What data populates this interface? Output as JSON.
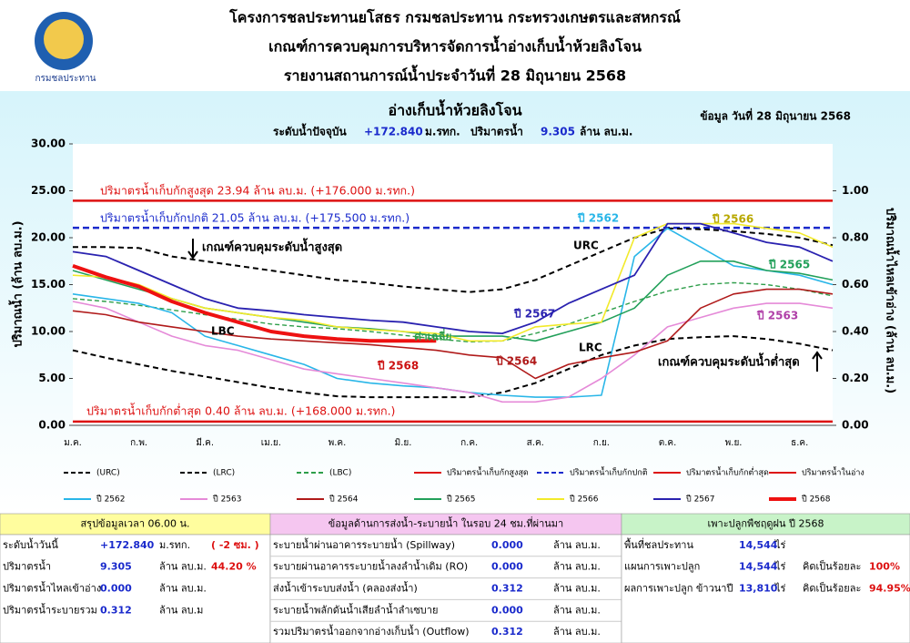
{
  "header": {
    "logo_text": "กรมชลประทาน",
    "titles": [
      "โครงการชลประทานยโสธร กรมชลประทาน กระทรวงเกษตรและสหกรณ์",
      "เกณฑ์การควบคุมการบริหารจัดการน้ำอ่างเก็บน้ำห้วยลิงโจน",
      "รายงานสถานการณ์น้ำประจำวันที่ 28 มิถุนายน 2568"
    ]
  },
  "chart_data": {
    "type": "line",
    "title": "อ่างเก็บน้ำห้วยลิงโจน",
    "subtitle_parts": [
      "ระดับน้ำปัจจุบัน",
      "+172.840",
      "ม.รทก.",
      "ปริมาตรน้ำ",
      "9.305",
      "ล้าน ลบ.ม."
    ],
    "date_note": "ข้อมูล วันที่ 28 มิถุนายน 2568",
    "y_label": "ปริมาณน้ำ (ล้าน ลบ.ม.)",
    "y2_label": "ปริมาณน้ำไหลเข้าอ่าง (ล้าน ลบ.ม.)",
    "categories": [
      "ม.ค.",
      null,
      "ก.พ.",
      null,
      "มี.ค.",
      null,
      "เม.ย.",
      null,
      "พ.ค.",
      null,
      "มิ.ย.",
      null,
      "ก.ค.",
      null,
      "ส.ค.",
      null,
      "ก.ย.",
      null,
      "ต.ค.",
      null,
      "พ.ย.",
      null,
      "ธ.ค.",
      null
    ],
    "ylim": [
      0,
      30
    ],
    "yticks": [
      {
        "value": 0,
        "label": "0.00"
      },
      {
        "value": 5,
        "label": "5.00"
      },
      {
        "value": 10,
        "label": "10.00"
      },
      {
        "value": 15,
        "label": "15.00"
      },
      {
        "value": 20,
        "label": "20.00"
      },
      {
        "value": 25,
        "label": "25.00"
      },
      {
        "value": 30,
        "label": "30.00"
      }
    ],
    "y2lim": [
      0,
      1.2
    ],
    "y2ticks": [
      {
        "value": 0,
        "label": "0.00"
      },
      {
        "value": 0.2,
        "label": "0.20"
      },
      {
        "value": 0.4,
        "label": "0.40"
      },
      {
        "value": 0.6,
        "label": "0.60"
      },
      {
        "value": 0.8,
        "label": "0.80"
      },
      {
        "value": 1,
        "label": "1.00"
      }
    ],
    "series": [
      {
        "name": "(URC)",
        "color": "#000000",
        "style": "dashed",
        "values": [
          19.0,
          19.0,
          18.9,
          18.0,
          17.5,
          17.0,
          16.5,
          16.0,
          15.5,
          15.2,
          14.8,
          14.5,
          14.2,
          14.5,
          15.5,
          17.0,
          18.5,
          20.0,
          21.0,
          20.9,
          20.7,
          20.4,
          20.0,
          19.2
        ]
      },
      {
        "name": "(LRC)",
        "color": "#000000",
        "style": "dashed",
        "values": [
          8.0,
          7.2,
          6.5,
          5.8,
          5.2,
          4.6,
          4.0,
          3.5,
          3.1,
          3.0,
          3.0,
          3.0,
          3.0,
          3.5,
          4.5,
          6.0,
          7.5,
          8.5,
          9.2,
          9.4,
          9.5,
          9.2,
          8.7,
          8.0
        ]
      },
      {
        "name": "(LBC)",
        "color": "#2e9e4a",
        "style": "dashed",
        "values": [
          13.5,
          13.2,
          12.8,
          12.3,
          11.8,
          11.3,
          10.8,
          10.5,
          10.3,
          10.0,
          9.6,
          9.2,
          8.9,
          9.0,
          9.8,
          10.8,
          12.0,
          13.2,
          14.3,
          15.0,
          15.2,
          15.0,
          14.5,
          13.8
        ]
      },
      {
        "name": "ปี 2562",
        "color": "#29b6e8",
        "style": "solid",
        "values": [
          14.0,
          13.5,
          13.0,
          12.0,
          9.5,
          8.5,
          7.5,
          6.5,
          5.0,
          4.5,
          4.2,
          4.0,
          3.5,
          3.2,
          3.0,
          3.0,
          3.2,
          18.0,
          21.0,
          19.0,
          17.0,
          16.5,
          16.0,
          15.0
        ]
      },
      {
        "name": "ปี 2563",
        "color": "#e58ad8",
        "style": "solid",
        "values": [
          13.2,
          12.5,
          11.0,
          9.5,
          8.5,
          8.0,
          7.0,
          6.0,
          5.5,
          5.0,
          4.5,
          4.0,
          3.5,
          2.5,
          2.5,
          3.0,
          5.0,
          7.5,
          10.5,
          11.5,
          12.5,
          13.0,
          13.0,
          12.5
        ]
      },
      {
        "name": "ปี 2564",
        "color": "#b01a1a",
        "style": "solid",
        "values": [
          12.2,
          11.8,
          11.0,
          10.5,
          10.0,
          9.5,
          9.2,
          9.0,
          8.8,
          8.6,
          8.3,
          8.0,
          7.5,
          7.2,
          5.0,
          6.5,
          7.2,
          7.8,
          9.0,
          12.5,
          14.0,
          14.5,
          14.5,
          14.0
        ]
      },
      {
        "name": "ปี 2565",
        "color": "#22a05a",
        "style": "solid",
        "values": [
          16.5,
          15.5,
          14.5,
          13.5,
          12.5,
          12.0,
          11.5,
          11.0,
          10.5,
          10.3,
          10.0,
          9.5,
          9.5,
          9.5,
          9.0,
          10.0,
          11.0,
          12.5,
          16.0,
          17.5,
          17.5,
          16.5,
          16.2,
          15.5
        ]
      },
      {
        "name": "ปี 2566",
        "color": "#f2ea2a",
        "style": "solid",
        "values": [
          16.0,
          15.8,
          15.0,
          13.5,
          12.5,
          12.0,
          11.5,
          11.2,
          10.5,
          10.2,
          10.0,
          9.8,
          9.0,
          9.0,
          10.5,
          10.8,
          11.0,
          20.0,
          21.5,
          21.5,
          21.5,
          21.0,
          20.5,
          19.0
        ]
      },
      {
        "name": "ปี 2567",
        "color": "#2a22b0",
        "style": "solid",
        "values": [
          18.5,
          18.0,
          16.5,
          15.0,
          13.5,
          12.5,
          12.2,
          11.8,
          11.5,
          11.2,
          11.0,
          10.5,
          10.0,
          9.8,
          11.0,
          13.0,
          14.5,
          16.0,
          21.5,
          21.5,
          20.5,
          19.5,
          19.0,
          17.5
        ]
      },
      {
        "name": "ปี 2568",
        "color": "#ee1111",
        "style": "solid",
        "values": [
          17.0,
          15.8,
          14.8,
          13.2,
          12.0,
          11.0,
          10.0,
          9.5,
          9.2,
          9.0,
          9.0,
          9.0,
          null,
          null,
          null,
          null,
          null,
          null,
          null,
          null,
          null,
          null,
          null,
          null
        ]
      }
    ],
    "reference_lines": [
      {
        "name": "ปริมาตรน้ำเก็บกักสูงสุด",
        "value": 23.94,
        "color": "#dd1111",
        "style": "solid",
        "label": "ปริมาตรน้ำเก็บกักสูงสุด  23.94  ล้าน ลบ.ม. (+176.000 ม.รทก.)"
      },
      {
        "name": "ปริมาตรน้ำเก็บกักปกติ",
        "value": 21.05,
        "color": "#1a2acc",
        "style": "dashed",
        "label": "ปริมาตรน้ำเก็บกักปกติ 21.05 ล้าน ลบ.ม. (+175.500 ม.รทก.)"
      },
      {
        "name": "ปริมาตรน้ำเก็บกักต่ำสุด",
        "value": 0.4,
        "color": "#dd1111",
        "style": "solid",
        "label": "ปริมาตรน้ำเก็บกักต่ำสุด 0.40 ล้าน ลบ.ม. (+168.000 ม.รทก.)"
      }
    ],
    "legend_only": [
      {
        "name": "ปริมาตรน้ำในอ่าง",
        "color": "#dd1111"
      }
    ],
    "annotations": [
      "เกณฑ์ควบคุมระดับน้ำสูงสุด",
      "URC",
      "LBC",
      "ค่าเฉลี่ย",
      "LRC",
      "ปี 2568",
      "ปี 2564",
      "ปี 2567",
      "ปี 2562",
      "ปี 2566",
      "ปี 2565",
      "ปี 2563",
      "เกณฑ์ควบคุมระดับน้ำต่ำสุด"
    ]
  },
  "panels": [
    {
      "title": "สรุปข้อมูลเวลา 06.00 น.",
      "rows": [
        [
          "ระดับน้ำวันนี้",
          "+172.840",
          "ม.รทก.",
          "( -2 ซม. )"
        ],
        [
          "ปริมาตรน้ำ",
          "9.305",
          "ล้าน ลบ.ม.",
          "44.20 %"
        ],
        [
          "ปริมาตรน้ำไหลเข้าอ่าง",
          "0.000",
          "ล้าน ลบ.ม."
        ],
        [
          "ปริมาตรน้ำระบายรวม",
          "0.312",
          "ล้าน ลบ.ม"
        ]
      ]
    },
    {
      "title": "ข้อมูลด้านการส่งน้ำ-ระบายน้ำ ในรอบ 24 ชม.ที่ผ่านมา",
      "rows": [
        [
          "ระบายน้ำผ่านอาคารระบายน้ำ (Spillway)",
          "0.000",
          "ล้าน ลบ.ม."
        ],
        [
          "ระบายผ่านอาคารระบายน้ำลงลำน้ำเดิม (RO)",
          "0.000",
          "ล้าน ลบ.ม."
        ],
        [
          "ส่งน้ำเข้าระบบส่งน้ำ (คลองส่งน้ำ)",
          "0.312",
          "ล้าน ลบ.ม."
        ],
        [
          "ระบายน้ำพลักดันน้ำเสียลำน้ำลำเซบาย",
          "0.000",
          "ล้าน ลบ.ม."
        ],
        [
          "รวมปริมาตรน้ำออกจากอ่างเก็บน้ำ (Outflow)",
          "0.312",
          "ล้าน ลบ.ม."
        ]
      ]
    },
    {
      "title": "เพาะปลูกพืชฤดูฝน ปี 2568",
      "rows": [
        [
          "พื้นที่ชลประทาน",
          "14,544",
          "ไร่"
        ],
        [
          "แผนการเพาะปลูก",
          "14,544",
          "ไร่",
          "คิดเป็นร้อยละ",
          "100%"
        ],
        [
          "ผลการเพาะปลูก ข้าวนาปี",
          "13,810",
          "ไร่",
          "คิดเป็นร้อยละ",
          "94.95%"
        ]
      ]
    }
  ]
}
